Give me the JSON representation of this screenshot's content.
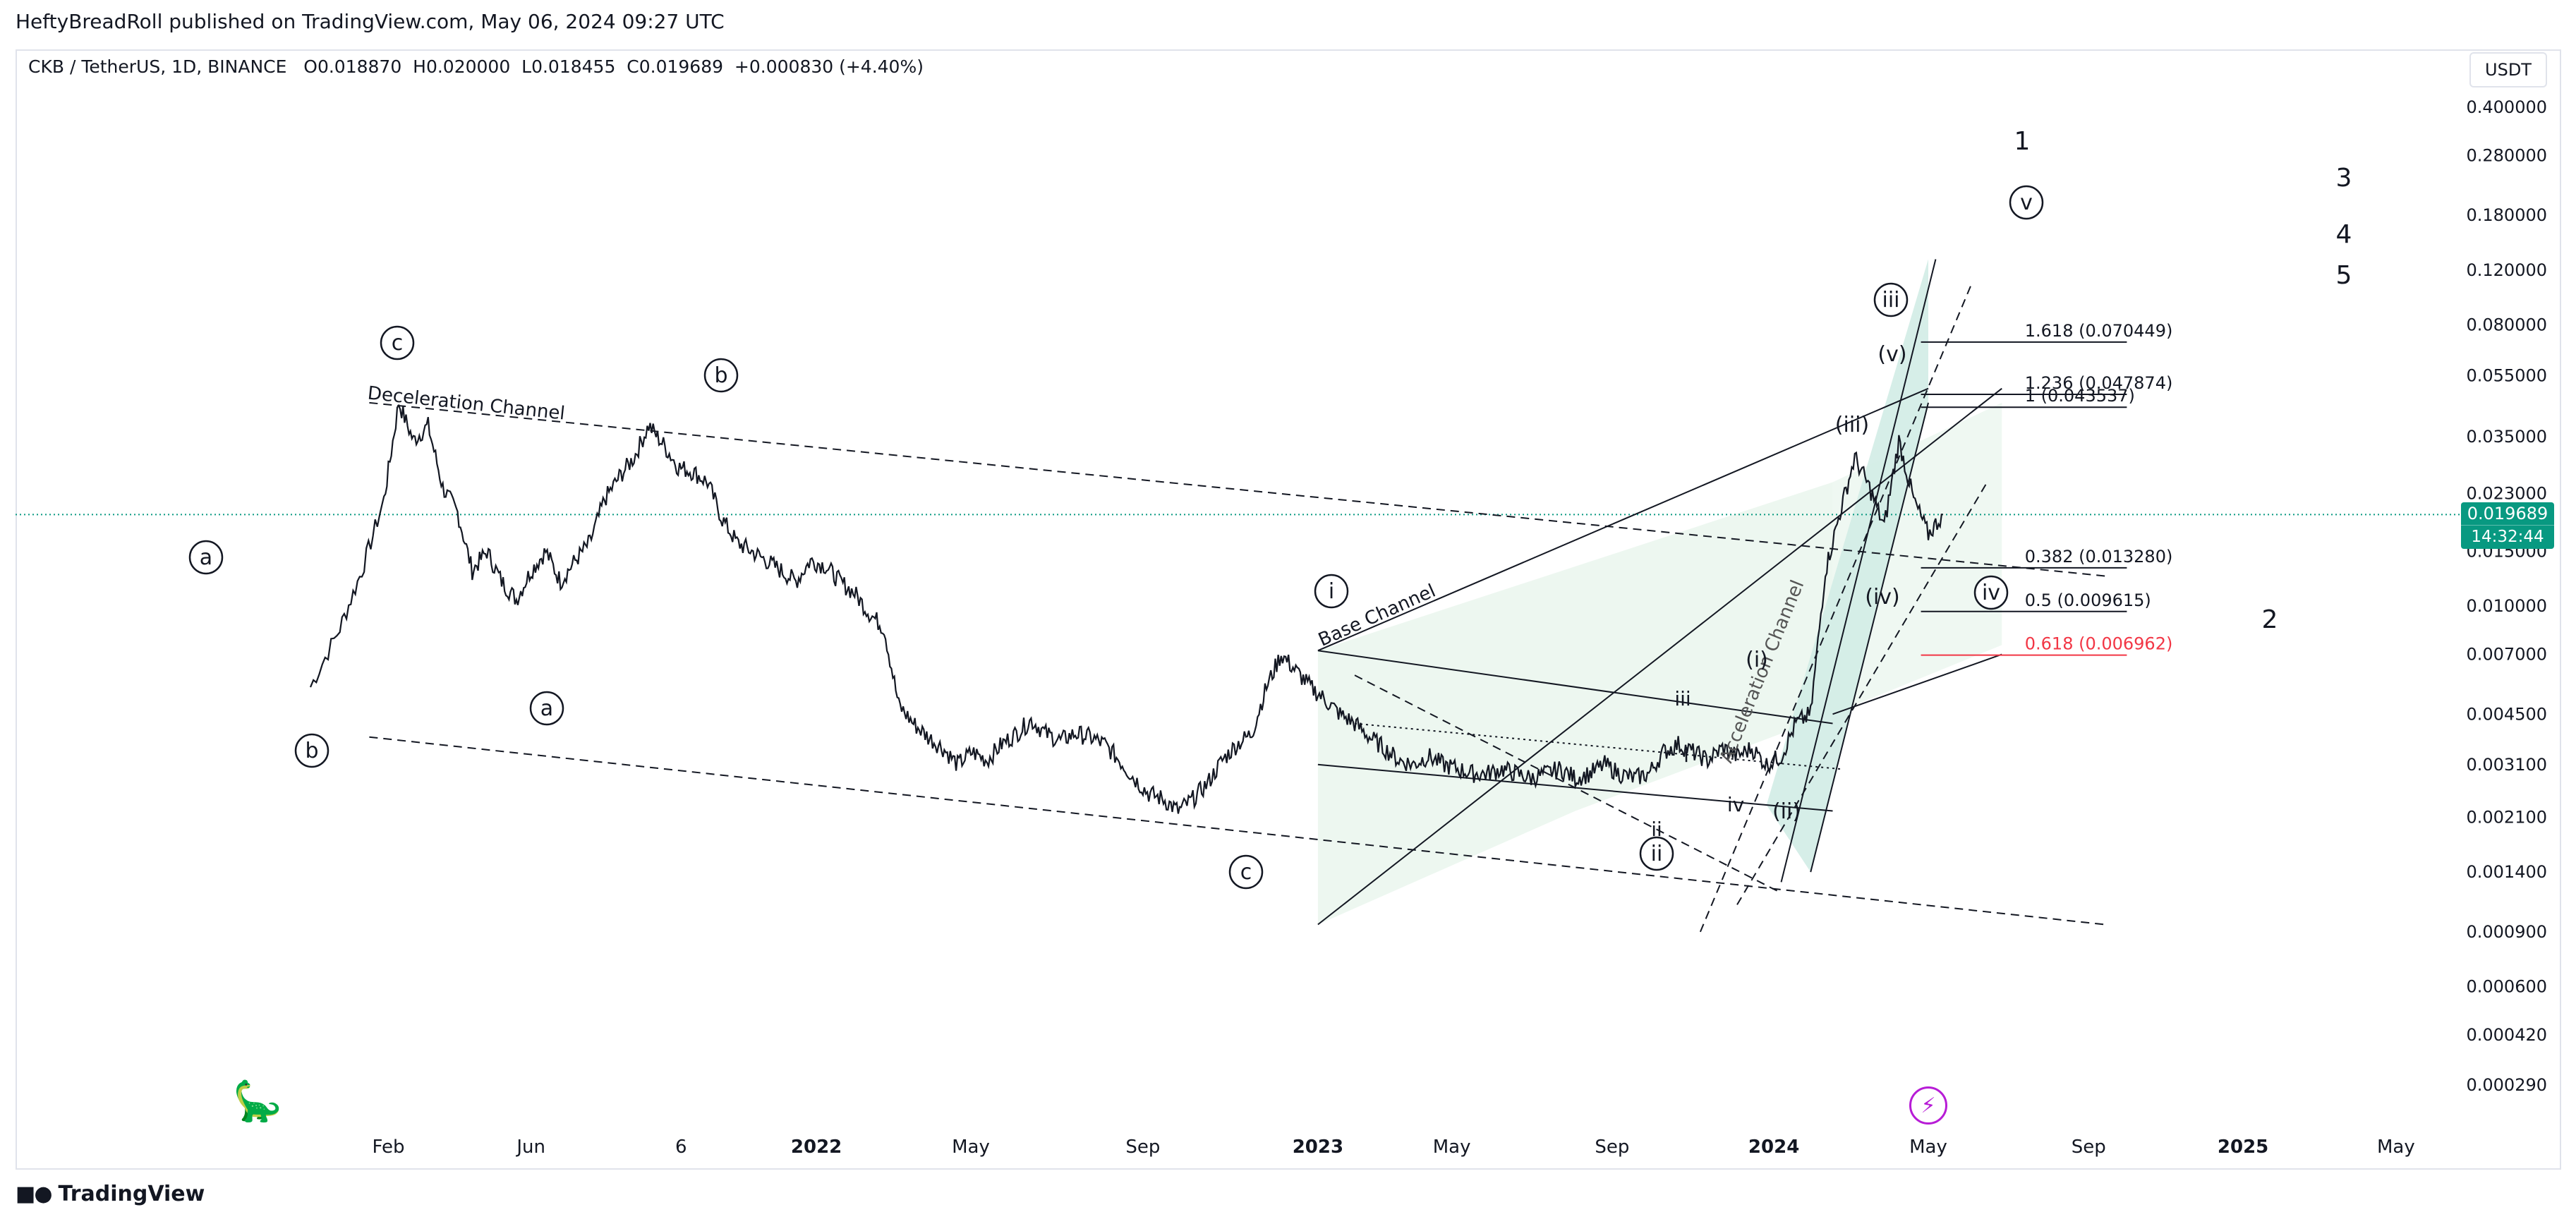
{
  "publisher": "HeftyBreadRoll published on TradingView.com, May 06, 2024 09:27 UTC",
  "legend": {
    "symbol": "CKB / TetherUS, 1D, BINANCE",
    "open": "O0.018870",
    "high": "H0.020000",
    "low": "L0.018455",
    "close": "C0.019689",
    "change": "+0.000830 (+4.40%)"
  },
  "currency": "USDT",
  "last_price": {
    "value": "0.019689",
    "countdown": "14:32:44"
  },
  "brand": "TradingView",
  "colors": {
    "up": "#089981",
    "fib_red": "#f23645",
    "fill": "#e8f5ec",
    "accel_fill": "#d2ece6",
    "event_icon": "#b71cd6"
  },
  "icons": [
    "tradingview-logo-icon",
    "dinosaur-icon",
    "lightning-icon"
  ],
  "chart_data": {
    "type": "line",
    "title": "CKB / TetherUS, 1D, BINANCE",
    "y_scale": "log",
    "ylim": [
      0.00025,
      0.5
    ],
    "y_ticks": [
      "0.400000",
      "0.280000",
      "0.180000",
      "0.120000",
      "0.080000",
      "0.055000",
      "0.035000",
      "0.023000",
      "0.015000",
      "0.010000",
      "0.007000",
      "0.004500",
      "0.003100",
      "0.002100",
      "0.001400",
      "0.000900",
      "0.000600",
      "0.000420",
      "0.000290"
    ],
    "x_ticks": [
      "Feb",
      "Jun",
      "6",
      "2022",
      "May",
      "Sep",
      "2023",
      "May",
      "Sep",
      "2024",
      "May",
      "Sep",
      "2025",
      "May"
    ],
    "x_tick_t": [
      0.053,
      0.15,
      0.252,
      0.344,
      0.449,
      0.566,
      0.685,
      0.776,
      0.885,
      0.995,
      1.1,
      1.209,
      1.314,
      1.418
    ],
    "series": [
      {
        "name": "CKBUSDT close",
        "t": [
          0.0,
          0.02,
          0.035,
          0.05,
          0.06,
          0.07,
          0.08,
          0.09,
          0.1,
          0.11,
          0.12,
          0.13,
          0.14,
          0.15,
          0.16,
          0.17,
          0.18,
          0.19,
          0.2,
          0.21,
          0.22,
          0.23,
          0.24,
          0.25,
          0.26,
          0.27,
          0.28,
          0.29,
          0.3,
          0.31,
          0.32,
          0.33,
          0.34,
          0.35,
          0.36,
          0.37,
          0.38,
          0.39,
          0.4,
          0.41,
          0.42,
          0.43,
          0.44,
          0.45,
          0.46,
          0.47,
          0.48,
          0.49,
          0.5,
          0.51,
          0.52,
          0.53,
          0.54,
          0.55,
          0.56,
          0.57,
          0.58,
          0.59,
          0.6,
          0.61,
          0.62,
          0.63,
          0.64,
          0.65,
          0.66,
          0.67,
          0.68,
          0.69,
          0.7,
          0.71,
          0.72,
          0.73,
          0.74,
          0.75,
          0.76,
          0.77,
          0.78,
          0.79,
          0.8,
          0.81,
          0.82,
          0.83,
          0.84,
          0.85,
          0.86,
          0.87,
          0.88,
          0.89,
          0.9,
          0.91,
          0.92,
          0.93,
          0.94,
          0.95,
          0.96,
          0.97,
          0.98,
          0.99,
          1.0,
          1.01,
          1.02,
          1.03,
          1.04,
          1.05,
          1.06,
          1.07,
          1.08,
          1.09,
          1.1,
          1.11
        ],
        "values": [
          0.0055,
          0.0085,
          0.013,
          0.022,
          0.045,
          0.034,
          0.038,
          0.024,
          0.02,
          0.013,
          0.015,
          0.012,
          0.0105,
          0.013,
          0.015,
          0.012,
          0.014,
          0.016,
          0.022,
          0.026,
          0.03,
          0.038,
          0.033,
          0.028,
          0.027,
          0.025,
          0.019,
          0.016,
          0.015,
          0.014,
          0.013,
          0.012,
          0.014,
          0.0135,
          0.012,
          0.011,
          0.0095,
          0.0085,
          0.0048,
          0.0042,
          0.0038,
          0.0035,
          0.0031,
          0.0034,
          0.0032,
          0.0036,
          0.0039,
          0.0043,
          0.0039,
          0.0037,
          0.0039,
          0.0038,
          0.0036,
          0.0032,
          0.0028,
          0.0025,
          0.0024,
          0.0022,
          0.0024,
          0.0027,
          0.0032,
          0.0036,
          0.0039,
          0.0055,
          0.007,
          0.0062,
          0.0055,
          0.005,
          0.0045,
          0.0042,
          0.0038,
          0.0035,
          0.0032,
          0.0031,
          0.0033,
          0.0031,
          0.003,
          0.0029,
          0.0029,
          0.003,
          0.0029,
          0.0028,
          0.0029,
          0.003,
          0.0028,
          0.0029,
          0.0031,
          0.0029,
          0.0028,
          0.0029,
          0.0034,
          0.0036,
          0.0034,
          0.0032,
          0.0035,
          0.0033,
          0.0035,
          0.0031,
          0.0033,
          0.0042,
          0.0045,
          0.013,
          0.02,
          0.03,
          0.024,
          0.018,
          0.034,
          0.022,
          0.017,
          0.0197
        ]
      }
    ],
    "annotations": {
      "channel_labels": [
        "Deceleration Channel",
        "Base Channel",
        "Acceleration Channel"
      ],
      "wave_labels": [
        "a",
        "b",
        "c",
        "b",
        "a",
        "c",
        "i",
        "ii",
        "iii",
        "iv",
        "(i)",
        "(ii)",
        "(iii)",
        "(iv)",
        "(v)",
        "ii",
        "iii",
        "iv",
        "v",
        "1",
        "2",
        "3",
        "4",
        "5"
      ],
      "fib_levels": [
        {
          "ratio": "1.618",
          "price": 0.070449,
          "label": "1.618 (0.070449)"
        },
        {
          "ratio": "1.236",
          "price": 0.047874,
          "label": "1.236 (0.047874)"
        },
        {
          "ratio": "1",
          "price": 0.043537,
          "label": "1 (0.043537)"
        },
        {
          "ratio": "0.382",
          "price": 0.01328,
          "label": "0.382 (0.013280)"
        },
        {
          "ratio": "0.5",
          "price": 0.009615,
          "label": "0.5 (0.009615)"
        },
        {
          "ratio": "0.618",
          "price": 0.006962,
          "label": "0.618 (0.006962)"
        }
      ]
    }
  }
}
